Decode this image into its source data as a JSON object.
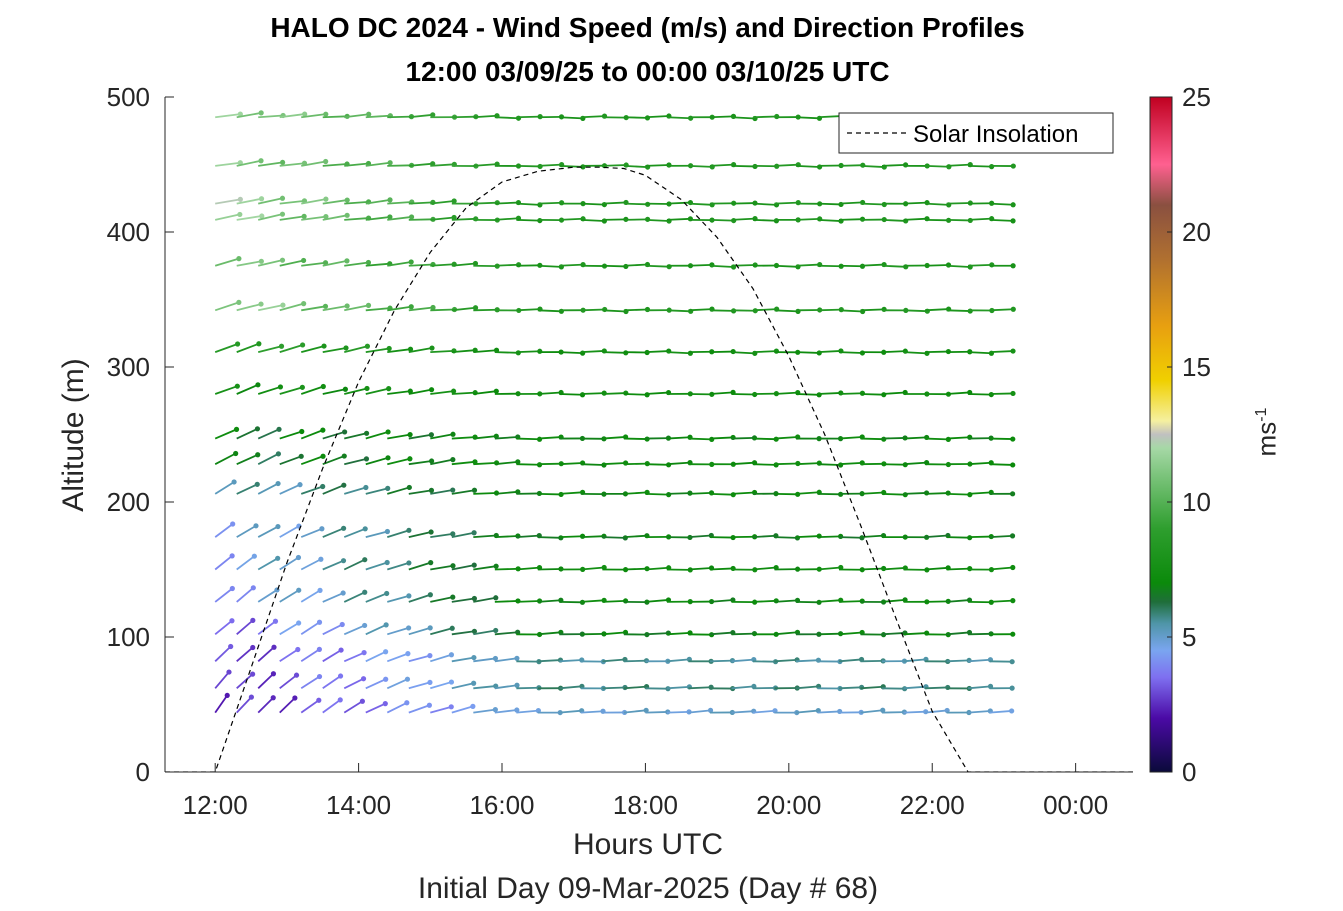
{
  "chart_data": {
    "type": "quiver",
    "title": "HALO DC 2024 - Wind Speed (m/s) and Direction Profiles",
    "subtitle": "12:00 03/09/25 to 00:00 03/10/25  UTC",
    "xlabel": "Hours UTC",
    "ylabel": "Altitude (m)",
    "footer": "Initial Day 09-Mar-2025 (Day # 68)",
    "xlim": [
      11.3,
      24.8
    ],
    "ylim": [
      0,
      500
    ],
    "x_ticks": [
      12,
      14,
      16,
      18,
      20,
      22,
      24
    ],
    "x_tick_labels": [
      "12:00",
      "14:00",
      "16:00",
      "18:00",
      "20:00",
      "22:00",
      "00:00"
    ],
    "y_ticks": [
      0,
      100,
      200,
      300,
      400,
      500
    ],
    "y_tick_labels": [
      "0",
      "100",
      "200",
      "300",
      "400",
      "500"
    ],
    "colorbar": {
      "label": "ms",
      "label_exponent": "-1",
      "range": [
        0,
        25
      ],
      "ticks": [
        0,
        5,
        10,
        15,
        20,
        25
      ],
      "tick_labels": [
        "0",
        "5",
        "10",
        "15",
        "20",
        "25"
      ],
      "colormap": [
        [
          0,
          "#0a0a3a"
        ],
        [
          2,
          "#4b0aa6"
        ],
        [
          3.5,
          "#7e6ff0"
        ],
        [
          4.5,
          "#7aa5f0"
        ],
        [
          5.5,
          "#4f95a8"
        ],
        [
          6.3,
          "#1f6e3a"
        ],
        [
          7,
          "#0b8a0b"
        ],
        [
          9,
          "#2e9e2e"
        ],
        [
          11,
          "#7cc47c"
        ],
        [
          12,
          "#a6d8a6"
        ],
        [
          12.5,
          "#c0c0c0"
        ],
        [
          13,
          "#f5f0a0"
        ],
        [
          14.5,
          "#f0d000"
        ],
        [
          16.5,
          "#e8a010"
        ],
        [
          19,
          "#b07030"
        ],
        [
          21,
          "#8a5040"
        ],
        [
          22.5,
          "#ff6090"
        ],
        [
          25,
          "#c00020"
        ]
      ]
    },
    "legend": {
      "entries": [
        "Solar Insolation"
      ],
      "placement": "top-right"
    },
    "solar_insolation": {
      "x": [
        11.3,
        12.0,
        12.5,
        13.0,
        13.5,
        14.0,
        14.5,
        15.0,
        15.5,
        16.0,
        16.5,
        17.0,
        17.35,
        17.7,
        18.0,
        18.5,
        19.0,
        19.5,
        20.0,
        20.5,
        21.0,
        21.5,
        22.0,
        22.5,
        22.8,
        24.8
      ],
      "y": [
        0,
        0,
        77,
        155,
        225,
        289,
        342,
        385,
        418,
        437,
        445,
        448,
        448,
        447,
        442,
        424,
        396,
        358,
        308,
        250,
        183,
        113,
        45,
        0,
        0,
        0
      ]
    },
    "wind": {
      "altitudes": [
        44,
        62,
        82,
        102,
        126,
        150,
        174,
        206,
        228,
        247,
        280,
        311,
        342,
        375,
        409,
        421,
        449,
        485
      ],
      "times": [
        12.0,
        12.3,
        12.6,
        12.9,
        13.2,
        13.5,
        13.8,
        14.1,
        14.4,
        14.7,
        15.0,
        15.3,
        15.6,
        15.9,
        16.2,
        16.5,
        16.8,
        17.1,
        17.4,
        17.7,
        18.0,
        18.3,
        18.6,
        18.9,
        19.2,
        19.5,
        19.8,
        20.1,
        20.4,
        20.7,
        21.0,
        21.3,
        21.6,
        21.9,
        22.2,
        22.5,
        22.8
      ],
      "speed_profile": {
        "altitudes": [
          44,
          62,
          82,
          102,
          126,
          150,
          174,
          206,
          228,
          247,
          280,
          311,
          342,
          375,
          409,
          421,
          449,
          485
        ],
        "early_speed": [
          2.2,
          2.4,
          2.6,
          3.2,
          4.2,
          4.5,
          4.6,
          5.2,
          6.4,
          6.6,
          7.5,
          8.8,
          11.6,
          11.0,
          11.6,
          11.8,
          11.2,
          11.6
        ],
        "late_speed": [
          5.0,
          5.8,
          5.6,
          6.8,
          7.0,
          7.2,
          6.8,
          7.0,
          7.2,
          7.0,
          7.3,
          7.4,
          8.2,
          8.0,
          8.0,
          8.1,
          8.2,
          8.1
        ]
      },
      "direction_profile": {
        "early_angle_deg": [
          52,
          48,
          45,
          42,
          40,
          38,
          34,
          30,
          28,
          26,
          22,
          20,
          16,
          14,
          12,
          12,
          10,
          8
        ],
        "late_angle_deg": [
          3,
          2,
          2,
          2,
          2,
          2,
          1,
          1,
          1,
          1,
          1,
          0,
          0,
          0,
          0,
          0,
          0,
          0
        ]
      }
    }
  }
}
